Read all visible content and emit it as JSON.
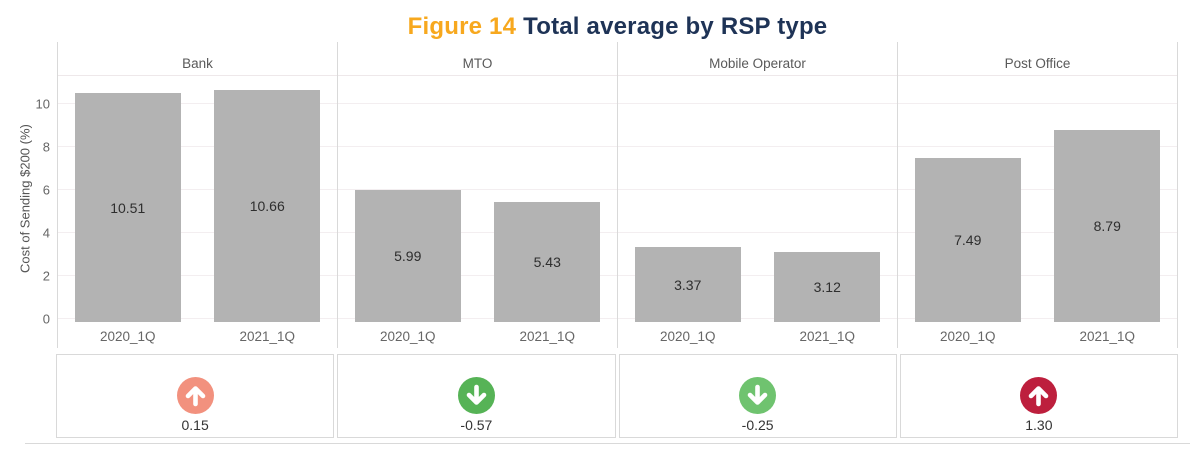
{
  "title": {
    "prefix": "Figure 14",
    "text": "Total average by RSP type"
  },
  "y_axis": {
    "label": "Cost of Sending $200 (%)",
    "ticks": [
      0,
      2,
      4,
      6,
      8,
      10
    ]
  },
  "chart_data": {
    "type": "bar",
    "title": "Figure 14 Total average by RSP type",
    "xlabel": "",
    "ylabel": "Cost of Sending $200 (%)",
    "categories": [
      "2020_1Q",
      "2021_1Q"
    ],
    "ylim": [
      0,
      11.4
    ],
    "grid": true,
    "bar_color": "#b3b3b3",
    "facets": [
      {
        "name": "Bank",
        "values": [
          10.51,
          10.66
        ],
        "value_labels": [
          "10.51",
          "10.66"
        ],
        "change_label": "0.15",
        "trend": "up",
        "trend_color": "#f2917e"
      },
      {
        "name": "MTO",
        "values": [
          5.99,
          5.43
        ],
        "value_labels": [
          "5.99",
          "5.43"
        ],
        "change_label": "-0.57",
        "trend": "down",
        "trend_color": "#56b356"
      },
      {
        "name": "Mobile Operator",
        "values": [
          3.37,
          3.12
        ],
        "value_labels": [
          "3.37",
          "3.12"
        ],
        "change_label": "-0.25",
        "trend": "down",
        "trend_color": "#6fc36f"
      },
      {
        "name": "Post Office",
        "values": [
          7.49,
          8.79
        ],
        "value_labels": [
          "7.49",
          "8.79"
        ],
        "change_label": "1.30",
        "trend": "up",
        "trend_color": "#bd1f3d"
      }
    ]
  }
}
